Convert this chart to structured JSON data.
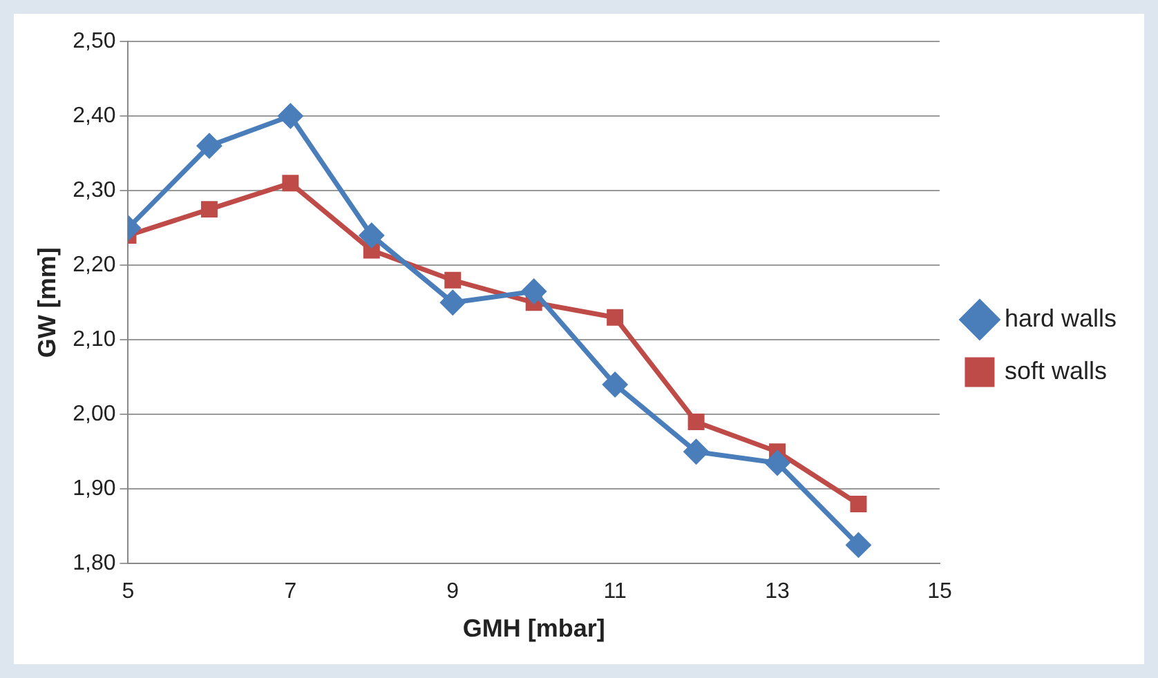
{
  "chart_data": {
    "type": "line",
    "xlabel": "GMH [mbar]",
    "ylabel": "GW [mm]",
    "x": [
      5,
      6,
      7,
      8,
      9,
      10,
      11,
      12,
      13,
      14
    ],
    "series": [
      {
        "name": "hard walls",
        "color": "#4a7ebb",
        "marker": "diamond",
        "values": [
          2.25,
          2.36,
          2.4,
          2.24,
          2.15,
          2.165,
          2.04,
          1.95,
          1.935,
          1.825
        ]
      },
      {
        "name": "soft walls",
        "color": "#be4b48",
        "marker": "square",
        "values": [
          2.24,
          2.275,
          2.31,
          2.22,
          2.18,
          2.15,
          2.13,
          1.99,
          1.95,
          1.88
        ]
      }
    ],
    "xlim": [
      5,
      15
    ],
    "xticks": [
      5,
      7,
      9,
      11,
      13,
      15
    ],
    "ylim": [
      1.8,
      2.5
    ],
    "yticks": [
      {
        "value": 1.8,
        "label": "1,80"
      },
      {
        "value": 1.9,
        "label": "1,90"
      },
      {
        "value": 2.0,
        "label": "2,00"
      },
      {
        "value": 2.1,
        "label": "2,10"
      },
      {
        "value": 2.2,
        "label": "2,20"
      },
      {
        "value": 2.3,
        "label": "2,30"
      },
      {
        "value": 2.4,
        "label": "2,40"
      },
      {
        "value": 2.5,
        "label": "2,50"
      }
    ],
    "grid": "y",
    "legend": "right",
    "line_style": "solid"
  }
}
